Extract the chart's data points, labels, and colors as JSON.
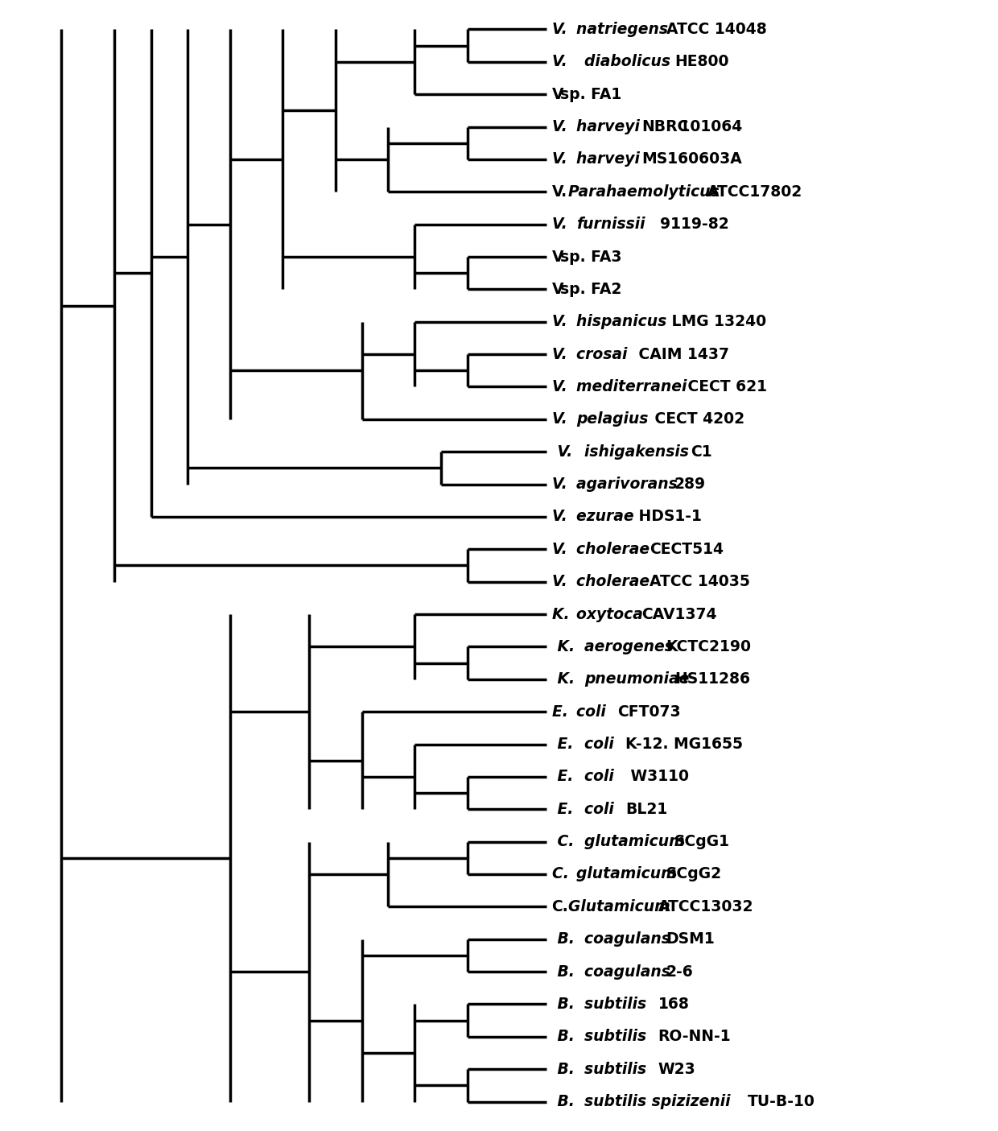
{
  "taxa": [
    "V. natriegens ATCC 14048",
    "V.  diabolicus HE800",
    "V sp. FA1",
    "V. harveyi NBRC 101064",
    "V. harveyi MS160603A",
    "V.Parahaemolyticus ATCC17802",
    "V. furnissii  9119-82",
    "V sp. FA3",
    "V sp. FA2",
    "V. hispanicus  LMG 13240",
    "V. crosai  CAIM 1437",
    "V. mediterranei  CECT 621",
    "V. pelagius  CECT 4202",
    " V. ishigakensis C1",
    "V. agarivorans 289",
    "V. ezurae  HDS1-1",
    "V. cholerae CECT514",
    "V. cholerae ATCC 14035",
    "K. oxytoca CAV1374",
    " K. aerogenes KCTC2190",
    " K. pneumoniae HS11286",
    "E. coli CFT073",
    " E. coli K-12. MG1655",
    " E. coli  W3110",
    " E. coli BL21",
    " C. glutamicum SCgG1",
    "C. glutamicum SCgG2",
    "C.Glutamicum ATCC13032",
    " B. coagulans DSM1",
    " B. coagulans 2-6",
    " B. subtilis 168",
    " B. subtilis RO-NN-1",
    " B. subtilis W23",
    " B. subtilis spizizenii TU-B-10"
  ],
  "italic_parts": [
    [
      "V. ",
      "natriegens ATCC 14048"
    ],
    [
      "V.  ",
      "diabolicus HE800"
    ],
    [
      "V",
      "sp. FA1"
    ],
    [
      "V. ",
      "harveyi ",
      "NBRC 101064"
    ],
    [
      "V. ",
      "harveyi ",
      "MS160603A"
    ],
    [
      "V.",
      "Parahaemolyticus ",
      "ATCC17802"
    ],
    [
      "V. ",
      "furnissii",
      "  9119-82"
    ],
    [
      "V",
      "sp. FA3"
    ],
    [
      "V",
      "sp. FA2"
    ],
    [
      "V. ",
      "hispanicus ",
      " LMG 13240"
    ],
    [
      "V. ",
      "crosai ",
      " CAIM 1437"
    ],
    [
      "V. ",
      "mediterranei ",
      " CECT 621"
    ],
    [
      "V. ",
      "pelagius ",
      " CECT 4202"
    ],
    [
      " V. ",
      "ishigakensis ",
      "C1"
    ],
    [
      "V. ",
      "agarivorans ",
      "289"
    ],
    [
      "V. ",
      "ezurae ",
      " HDS1-1"
    ],
    [
      "V. ",
      "cholerae ",
      "CECT514"
    ],
    [
      "V. ",
      "cholerae ",
      "ATCC 14035"
    ],
    [
      "K. ",
      "oxytoca ",
      "CAV1374"
    ],
    [
      " K. ",
      "aerogenes ",
      "KCTC2190"
    ],
    [
      " K. ",
      "pneumoniae ",
      "HS11286"
    ],
    [
      "E. ",
      "coli ",
      "CFT073"
    ],
    [
      " E. ",
      "coli ",
      "K-12. MG1655"
    ],
    [
      " E. ",
      "coli ",
      " W3110"
    ],
    [
      " E. ",
      "coli ",
      "BL21"
    ],
    [
      " C. ",
      "glutamicum ",
      "SCgG1"
    ],
    [
      "C. ",
      "glutamicum ",
      "SCgG2"
    ],
    [
      "C.",
      "Glutamicum ",
      "ATCC13032"
    ],
    [
      " B. ",
      "coagulans ",
      "DSM1"
    ],
    [
      " B. ",
      "coagulans ",
      "2-6"
    ],
    [
      " B. ",
      "subtilis ",
      "168"
    ],
    [
      " B. ",
      "subtilis ",
      "RO-NN-1"
    ],
    [
      " B. ",
      "subtilis ",
      "W23"
    ],
    [
      " B. ",
      "subtilis spizizenii ",
      "TU-B-10"
    ]
  ],
  "background_color": "#ffffff",
  "line_color": "#000000",
  "line_width": 2.5,
  "font_size": 13.5
}
